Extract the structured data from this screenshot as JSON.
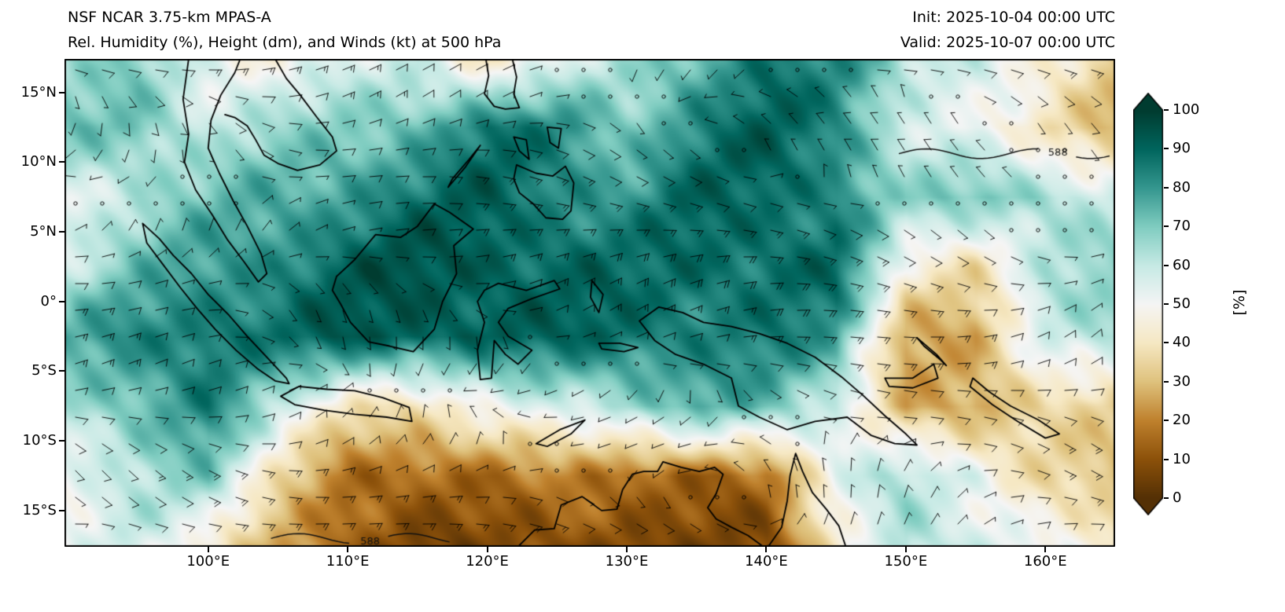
{
  "header": {
    "title_line1": "NSF NCAR 3.75-km MPAS-A",
    "title_line2": "Rel. Humidity (%), Height (dm), and Winds (kt) at 500 hPa",
    "init_label": "Init: 2025-10-04 00:00 UTC",
    "valid_label": "Valid: 2025-10-07 00:00 UTC"
  },
  "axes": {
    "x_ticks": [
      {
        "label": "100°E",
        "lon": 100
      },
      {
        "label": "110°E",
        "lon": 110
      },
      {
        "label": "120°E",
        "lon": 120
      },
      {
        "label": "130°E",
        "lon": 130
      },
      {
        "label": "140°E",
        "lon": 140
      },
      {
        "label": "150°E",
        "lon": 150
      },
      {
        "label": "160°E",
        "lon": 160
      }
    ],
    "y_ticks": [
      {
        "label": "15°N",
        "lat": 15
      },
      {
        "label": "10°N",
        "lat": 10
      },
      {
        "label": "5°N",
        "lat": 5
      },
      {
        "label": "0°",
        "lat": 0
      },
      {
        "label": "5°S",
        "lat": -5
      },
      {
        "label": "10°S",
        "lat": -10
      },
      {
        "label": "15°S",
        "lat": -15
      }
    ]
  },
  "colorbar": {
    "label": "[%]",
    "min": 0,
    "max": 100,
    "ticks": [
      0,
      10,
      20,
      30,
      40,
      50,
      60,
      70,
      80,
      90,
      100
    ]
  },
  "chart_data": {
    "type": "heatmap",
    "title": "Rel. Humidity (%), Height (dm), and Winds (kt) at 500 hPa",
    "model": "NSF NCAR 3.75-km MPAS-A",
    "init_time": "2025-10-04 00:00 UTC",
    "valid_time": "2025-10-07 00:00 UTC",
    "field": "relative_humidity",
    "units": "%",
    "level_hPa": 500,
    "wind_plot": "wind barbs (kt); calm winds shown as open circles",
    "height_contours_units": "dm",
    "lon_range_deg_e": [
      89.7,
      165.0
    ],
    "lat_range_deg": [
      -17.6,
      17.4
    ],
    "colorbar_range": [
      0,
      100
    ],
    "colorbar_ticks": [
      0,
      10,
      20,
      30,
      40,
      50,
      60,
      70,
      80,
      90,
      100
    ],
    "colormap_stops": [
      {
        "value": 0,
        "color": "#543005"
      },
      {
        "value": 10,
        "color": "#8c510a"
      },
      {
        "value": 20,
        "color": "#bf812d"
      },
      {
        "value": 30,
        "color": "#dfc27d"
      },
      {
        "value": 40,
        "color": "#f6e8c3"
      },
      {
        "value": 50,
        "color": "#f5f5f5"
      },
      {
        "value": 60,
        "color": "#c7eae5"
      },
      {
        "value": 70,
        "color": "#80cdc1"
      },
      {
        "value": 80,
        "color": "#35978f"
      },
      {
        "value": 90,
        "color": "#01665e"
      },
      {
        "value": 100,
        "color": "#003c30"
      }
    ],
    "grid_lons_deg_e": [
      90,
      95,
      100,
      105,
      110,
      115,
      120,
      125,
      130,
      135,
      140,
      145,
      150,
      155,
      160,
      165
    ],
    "grid_lats_deg": [
      17.5,
      12.5,
      7.5,
      2.5,
      -2.5,
      -7.5,
      -12.5,
      -17.5
    ],
    "rh_percent_grid": [
      [
        62,
        68,
        55,
        48,
        52,
        58,
        42,
        50,
        62,
        78,
        86,
        80,
        66,
        60,
        42,
        30
      ],
      [
        70,
        74,
        60,
        64,
        70,
        76,
        86,
        82,
        72,
        84,
        90,
        84,
        60,
        48,
        38,
        30
      ],
      [
        56,
        64,
        70,
        76,
        82,
        86,
        90,
        86,
        80,
        88,
        90,
        86,
        64,
        72,
        68,
        58
      ],
      [
        60,
        70,
        80,
        86,
        90,
        94,
        94,
        90,
        86,
        90,
        90,
        88,
        45,
        40,
        62,
        66
      ],
      [
        74,
        84,
        90,
        86,
        92,
        94,
        92,
        88,
        90,
        86,
        84,
        78,
        28,
        25,
        55,
        68
      ],
      [
        64,
        76,
        84,
        58,
        42,
        38,
        46,
        58,
        68,
        74,
        72,
        62,
        25,
        22,
        40,
        34
      ],
      [
        54,
        62,
        68,
        40,
        16,
        12,
        16,
        24,
        12,
        12,
        20,
        52,
        62,
        55,
        36,
        26
      ],
      [
        50,
        56,
        46,
        26,
        10,
        6,
        10,
        6,
        6,
        10,
        6,
        38,
        68,
        58,
        48,
        40
      ]
    ],
    "contours": [
      {
        "text": "588",
        "lat": 10.6,
        "lon_start": 149.5,
        "lon_end": 165.0,
        "label_lon": 160.9
      },
      {
        "text": "588",
        "lat": -17.0,
        "lon_start": 104.5,
        "lon_end": 117.5,
        "label_lon": 111.6
      }
    ],
    "coastlines_lonlat": [
      [
        [
          95.3,
          5.6
        ],
        [
          96.5,
          4.5
        ],
        [
          97.5,
          3.3
        ],
        [
          98.8,
          2.0
        ],
        [
          100.0,
          0.5
        ],
        [
          101.5,
          -1.0
        ],
        [
          102.8,
          -2.5
        ],
        [
          104.2,
          -4.0
        ],
        [
          105.6,
          -5.5
        ],
        [
          105.8,
          -5.9
        ],
        [
          104.8,
          -5.7
        ],
        [
          103.5,
          -4.8
        ],
        [
          102.0,
          -3.5
        ],
        [
          100.5,
          -2.0
        ],
        [
          99.2,
          -0.5
        ],
        [
          98.0,
          1.0
        ],
        [
          96.8,
          2.6
        ],
        [
          95.6,
          4.2
        ],
        [
          95.3,
          5.6
        ]
      ],
      [
        [
          105.2,
          -6.8
        ],
        [
          106.5,
          -6.1
        ],
        [
          108.5,
          -6.3
        ],
        [
          110.5,
          -6.4
        ],
        [
          112.5,
          -6.9
        ],
        [
          114.4,
          -7.6
        ],
        [
          114.6,
          -8.6
        ],
        [
          112.8,
          -8.3
        ],
        [
          110.5,
          -8.1
        ],
        [
          108.3,
          -7.8
        ],
        [
          106.2,
          -7.4
        ],
        [
          105.2,
          -6.8
        ]
      ],
      [
        [
          109.2,
          1.8
        ],
        [
          110.5,
          3.0
        ],
        [
          112.0,
          4.8
        ],
        [
          113.8,
          4.6
        ],
        [
          115.0,
          5.4
        ],
        [
          116.2,
          7.0
        ],
        [
          117.3,
          6.4
        ],
        [
          119.0,
          5.2
        ],
        [
          117.6,
          4.0
        ],
        [
          117.8,
          2.0
        ],
        [
          116.8,
          0.0
        ],
        [
          116.2,
          -2.0
        ],
        [
          114.7,
          -3.6
        ],
        [
          113.0,
          -3.2
        ],
        [
          111.5,
          -2.9
        ],
        [
          110.2,
          -1.5
        ],
        [
          109.5,
          -0.2
        ],
        [
          108.9,
          0.8
        ],
        [
          109.2,
          1.8
        ]
      ],
      [
        [
          119.8,
          0.8
        ],
        [
          120.8,
          1.3
        ],
        [
          122.8,
          0.8
        ],
        [
          124.8,
          1.5
        ],
        [
          125.2,
          0.9
        ],
        [
          123.2,
          0.2
        ],
        [
          121.5,
          -0.5
        ],
        [
          120.8,
          -1.5
        ],
        [
          121.5,
          -2.5
        ],
        [
          123.2,
          -3.5
        ],
        [
          122.2,
          -4.5
        ],
        [
          121.3,
          -3.8
        ],
        [
          120.5,
          -2.8
        ],
        [
          120.3,
          -5.5
        ],
        [
          119.5,
          -5.6
        ],
        [
          119.3,
          -3.5
        ],
        [
          119.8,
          -1.5
        ],
        [
          119.3,
          0.0
        ],
        [
          119.8,
          0.8
        ]
      ],
      [
        [
          130.9,
          -1.4
        ],
        [
          132.3,
          -0.4
        ],
        [
          134.0,
          -0.8
        ],
        [
          135.5,
          -1.5
        ],
        [
          137.5,
          -1.8
        ],
        [
          139.5,
          -2.3
        ],
        [
          141.5,
          -3.0
        ],
        [
          143.5,
          -4.0
        ],
        [
          145.5,
          -5.5
        ],
        [
          147.0,
          -6.8
        ],
        [
          148.5,
          -8.2
        ],
        [
          150.0,
          -9.5
        ],
        [
          150.8,
          -10.3
        ],
        [
          149.2,
          -10.2
        ],
        [
          147.5,
          -9.6
        ],
        [
          145.8,
          -8.3
        ],
        [
          143.5,
          -8.6
        ],
        [
          141.5,
          -9.2
        ],
        [
          139.5,
          -8.3
        ],
        [
          138.0,
          -7.5
        ],
        [
          137.5,
          -5.5
        ],
        [
          135.5,
          -4.5
        ],
        [
          133.5,
          -3.8
        ],
        [
          132.0,
          -2.8
        ],
        [
          130.9,
          -1.4
        ]
      ],
      [
        [
          119.9,
          17.4
        ],
        [
          120.1,
          16.2
        ],
        [
          119.8,
          14.9
        ],
        [
          120.5,
          14.0
        ],
        [
          121.3,
          13.8
        ],
        [
          122.3,
          13.9
        ],
        [
          121.9,
          14.9
        ],
        [
          122.1,
          16.1
        ],
        [
          121.8,
          17.4
        ]
      ],
      [
        [
          122.1,
          9.8
        ],
        [
          123.5,
          9.2
        ],
        [
          124.7,
          9.0
        ],
        [
          125.6,
          9.7
        ],
        [
          126.2,
          8.5
        ],
        [
          126.0,
          6.5
        ],
        [
          125.4,
          5.9
        ],
        [
          124.2,
          6.0
        ],
        [
          123.3,
          7.0
        ],
        [
          122.3,
          7.8
        ],
        [
          121.9,
          8.8
        ],
        [
          122.1,
          9.8
        ]
      ],
      [
        [
          124.3,
          12.5
        ],
        [
          125.3,
          12.4
        ],
        [
          125.1,
          11.0
        ],
        [
          124.5,
          11.4
        ],
        [
          124.3,
          12.5
        ]
      ],
      [
        [
          121.9,
          11.8
        ],
        [
          122.8,
          11.6
        ],
        [
          123.0,
          10.2
        ],
        [
          122.3,
          10.8
        ],
        [
          121.9,
          11.8
        ]
      ],
      [
        [
          117.2,
          8.2
        ],
        [
          118.4,
          9.6
        ],
        [
          119.5,
          11.2
        ],
        [
          118.7,
          10.2
        ],
        [
          117.5,
          8.8
        ],
        [
          117.2,
          8.2
        ]
      ],
      [
        [
          98.6,
          17.4
        ],
        [
          98.2,
          14.5
        ],
        [
          98.6,
          12.0
        ],
        [
          98.3,
          10.0
        ],
        [
          99.1,
          8.0
        ],
        [
          100.3,
          6.2
        ],
        [
          101.4,
          4.4
        ],
        [
          102.6,
          2.8
        ],
        [
          103.6,
          1.4
        ],
        [
          104.2,
          2.0
        ],
        [
          103.8,
          3.4
        ],
        [
          102.8,
          5.4
        ],
        [
          101.8,
          7.2
        ],
        [
          100.8,
          9.2
        ],
        [
          100.0,
          11.0
        ],
        [
          100.2,
          13.0
        ],
        [
          100.9,
          14.8
        ],
        [
          101.9,
          16.4
        ],
        [
          102.3,
          17.4
        ]
      ],
      [
        [
          104.8,
          17.4
        ],
        [
          105.6,
          16.0
        ],
        [
          106.6,
          14.8
        ],
        [
          107.8,
          13.2
        ],
        [
          108.9,
          11.8
        ],
        [
          109.2,
          10.8
        ],
        [
          108.0,
          9.8
        ],
        [
          106.4,
          9.4
        ],
        [
          105.0,
          9.9
        ],
        [
          104.0,
          10.5
        ],
        [
          103.4,
          11.6
        ],
        [
          102.8,
          12.6
        ],
        [
          101.9,
          13.2
        ],
        [
          101.2,
          13.4
        ]
      ],
      [
        [
          127.5,
          1.5
        ],
        [
          128.3,
          0.5
        ],
        [
          128.0,
          -0.8
        ],
        [
          127.4,
          0.3
        ],
        [
          127.5,
          1.5
        ]
      ],
      [
        [
          128.0,
          -3.0
        ],
        [
          129.5,
          -3.0
        ],
        [
          130.8,
          -3.3
        ],
        [
          129.8,
          -3.6
        ],
        [
          128.2,
          -3.4
        ],
        [
          128.0,
          -3.0
        ]
      ],
      [
        [
          123.5,
          -10.2
        ],
        [
          125.2,
          -9.2
        ],
        [
          127.0,
          -8.5
        ],
        [
          126.0,
          -9.5
        ],
        [
          124.3,
          -10.4
        ],
        [
          123.5,
          -10.2
        ]
      ],
      [
        [
          148.5,
          -5.5
        ],
        [
          150.5,
          -5.5
        ],
        [
          152.0,
          -4.5
        ],
        [
          152.3,
          -5.5
        ],
        [
          150.5,
          -6.2
        ],
        [
          148.8,
          -6.1
        ],
        [
          148.5,
          -5.5
        ]
      ],
      [
        [
          150.8,
          -2.6
        ],
        [
          152.2,
          -3.8
        ],
        [
          152.9,
          -4.6
        ],
        [
          152.5,
          -4.2
        ],
        [
          151.3,
          -3.2
        ],
        [
          150.8,
          -2.6
        ]
      ],
      [
        [
          154.8,
          -5.5
        ],
        [
          156.0,
          -6.5
        ],
        [
          157.5,
          -7.5
        ],
        [
          159.5,
          -8.5
        ],
        [
          161.0,
          -9.5
        ],
        [
          160.0,
          -9.8
        ],
        [
          158.0,
          -8.6
        ],
        [
          156.2,
          -7.4
        ],
        [
          154.6,
          -6.1
        ],
        [
          154.8,
          -5.5
        ]
      ],
      [
        [
          122.2,
          -17.6
        ],
        [
          123.4,
          -16.4
        ],
        [
          124.8,
          -16.3
        ],
        [
          125.3,
          -14.6
        ],
        [
          126.8,
          -14.0
        ],
        [
          128.2,
          -15.0
        ],
        [
          129.3,
          -14.9
        ],
        [
          129.7,
          -13.5
        ],
        [
          130.4,
          -12.4
        ],
        [
          131.2,
          -12.2
        ],
        [
          132.2,
          -12.2
        ],
        [
          132.6,
          -11.5
        ],
        [
          133.9,
          -11.9
        ],
        [
          135.2,
          -12.2
        ],
        [
          136.3,
          -11.9
        ],
        [
          136.9,
          -12.4
        ],
        [
          136.4,
          -13.8
        ],
        [
          135.8,
          -14.8
        ],
        [
          136.4,
          -15.6
        ],
        [
          137.5,
          -16.2
        ],
        [
          138.7,
          -16.8
        ],
        [
          139.8,
          -17.6
        ]
      ],
      [
        [
          139.8,
          -17.6
        ],
        [
          140.2,
          -17.5
        ],
        [
          141.1,
          -16.2
        ],
        [
          141.5,
          -14.3
        ],
        [
          141.7,
          -12.5
        ],
        [
          142.1,
          -10.9
        ],
        [
          142.6,
          -12.2
        ],
        [
          143.3,
          -13.7
        ],
        [
          144.3,
          -14.9
        ],
        [
          145.2,
          -16.1
        ],
        [
          145.7,
          -17.6
        ]
      ]
    ]
  }
}
